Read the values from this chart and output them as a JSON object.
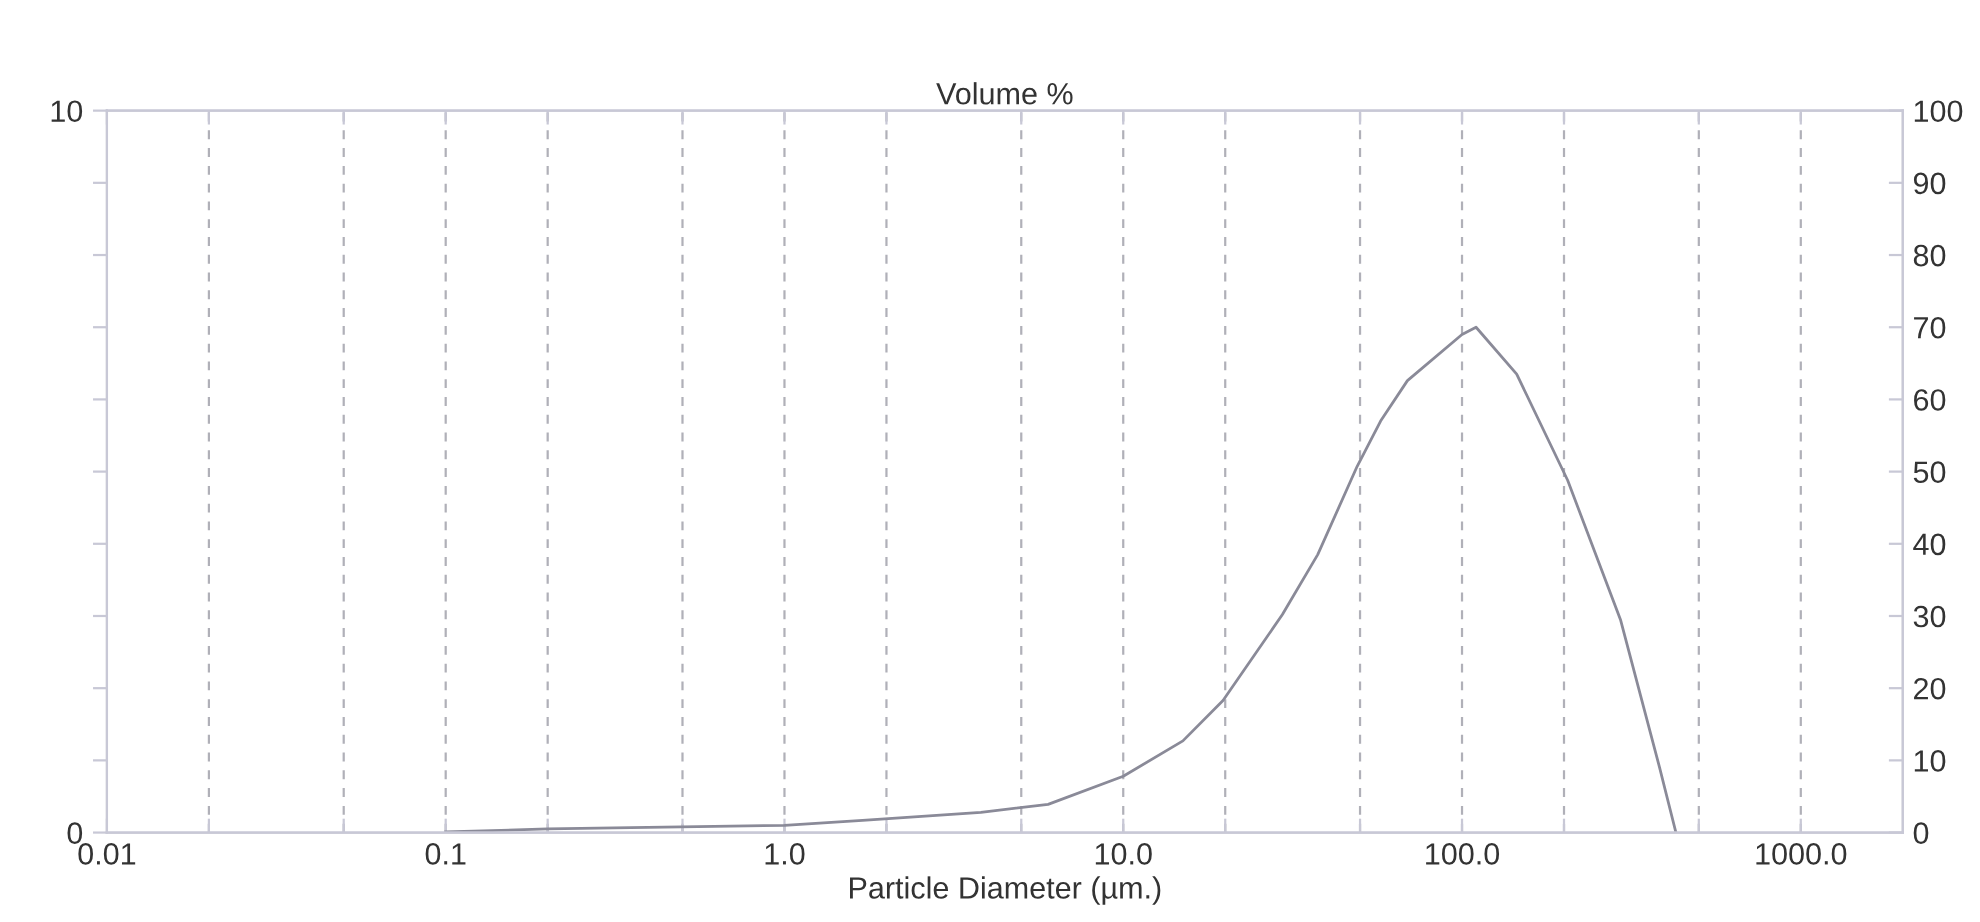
{
  "chart_data": {
    "type": "line",
    "title": "Volume %",
    "xlabel": "Particle Diameter (µm.)",
    "log": "x",
    "grid": "x",
    "line_style": "solid",
    "marker": "none",
    "xlim": [
      0.01,
      2000
    ],
    "xticks": [
      {
        "value": 0.01,
        "label": "0.01"
      },
      {
        "value": 0.02,
        "label": null
      },
      {
        "value": 0.05,
        "label": null
      },
      {
        "value": 0.1,
        "label": "0.1"
      },
      {
        "value": 0.2,
        "label": null
      },
      {
        "value": 0.5,
        "label": null
      },
      {
        "value": 1,
        "label": "1.0"
      },
      {
        "value": 2,
        "label": null
      },
      {
        "value": 5,
        "label": null
      },
      {
        "value": 10,
        "label": "10.0"
      },
      {
        "value": 20,
        "label": null
      },
      {
        "value": 50,
        "label": null
      },
      {
        "value": 100,
        "label": "100.0"
      },
      {
        "value": 200,
        "label": null
      },
      {
        "value": 500,
        "label": null
      },
      {
        "value": 1000,
        "label": "1000.0"
      }
    ],
    "ylim": [
      0,
      10
    ],
    "yticks": [
      0,
      {
        "value": 1,
        "label": null
      },
      {
        "value": 2,
        "label": null
      },
      {
        "value": 3,
        "label": null
      },
      {
        "value": 4,
        "label": null
      },
      {
        "value": 5,
        "label": null
      },
      {
        "value": 6,
        "label": null
      },
      {
        "value": 7,
        "label": null
      },
      {
        "value": 8,
        "label": null
      },
      {
        "value": 9,
        "label": null
      },
      10
    ],
    "y2lim": [
      0,
      100
    ],
    "y2ticks": [
      0,
      10,
      20,
      30,
      40,
      50,
      60,
      70,
      80,
      90,
      100
    ],
    "series": [
      {
        "color": "#8a8a98",
        "x": [
          0.1,
          0.2,
          1.0,
          1.7,
          3.8,
          6.0,
          10,
          15,
          19.7,
          29.5,
          37.5,
          49,
          57.5,
          69,
          100,
          110,
          145,
          205,
          294,
          383,
          428
        ],
        "values": [
          0.01,
          0.05,
          0.1,
          0.17,
          0.28,
          0.39,
          0.78,
          1.27,
          1.83,
          3.02,
          3.85,
          5.07,
          5.7,
          6.26,
          6.9,
          7.0,
          6.35,
          4.88,
          2.94,
          0.9,
          0
        ]
      }
    ]
  }
}
